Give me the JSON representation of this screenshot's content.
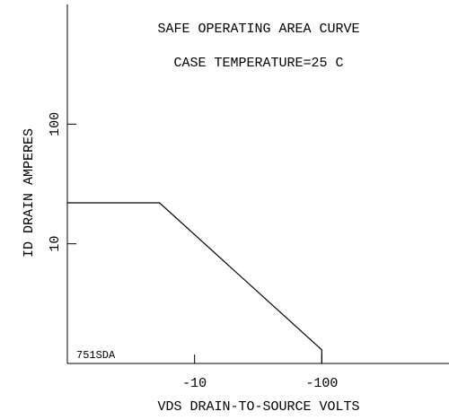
{
  "chart_data": {
    "type": "line",
    "title": "SAFE OPERATING AREA CURVE",
    "subtitle": "CASE TEMPERATURE=25 C",
    "xlabel": "VDS   DRAIN-TO-SOURCE VOLTS",
    "ylabel": "ID   DRAIN AMPERES",
    "annotation": "751SDA",
    "xscale": "log",
    "yscale": "log",
    "xlim": [
      1,
      1000
    ],
    "ylim": [
      1,
      1000
    ],
    "xticks": [
      {
        "value": 10,
        "label": "-10"
      },
      {
        "value": 100,
        "label": "-100"
      }
    ],
    "yticks": [
      10,
      100
    ],
    "series": [
      {
        "color": "#000000",
        "x": [
          1,
          5.3,
          100,
          100
        ],
        "values": [
          22,
          22,
          1.3,
          1
        ]
      }
    ]
  }
}
